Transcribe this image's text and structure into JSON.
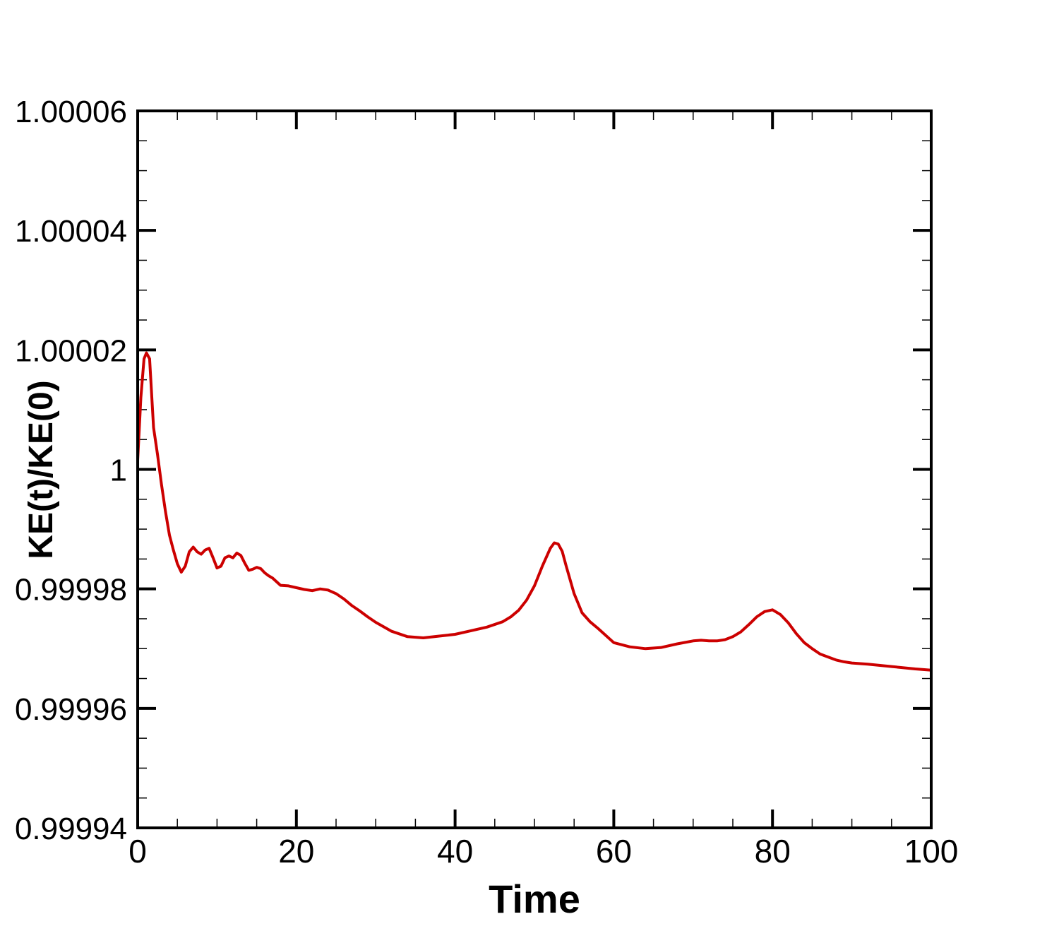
{
  "chart_data": {
    "type": "line",
    "title": "",
    "xlabel": "Time",
    "ylabel": "KE(t)/KE(0)",
    "xlim": [
      0,
      100
    ],
    "ylim": [
      0.99994,
      1.00006
    ],
    "x_ticks": [
      0,
      20,
      40,
      60,
      80,
      100
    ],
    "x_tick_labels": [
      "0",
      "20",
      "40",
      "60",
      "80",
      "100"
    ],
    "y_ticks": [
      0.99994,
      0.99996,
      0.99998,
      1.0,
      1.00002,
      1.00004,
      1.00006
    ],
    "y_tick_labels": [
      "0.99994",
      "0.99996",
      "0.99998",
      "1",
      "1.00002",
      "1.00004",
      "1.00006"
    ],
    "x_minor_step": 5,
    "y_minor_step": 5e-06,
    "grid": false,
    "legend": "none",
    "series": [
      {
        "color": "#cc0000",
        "x": [
          0,
          0.4,
          0.8,
          1.1,
          1.5,
          2.0,
          2.5,
          3.0,
          3.5,
          4.0,
          4.5,
          5.0,
          5.5,
          6.0,
          6.5,
          7.0,
          7.5,
          8.0,
          8.5,
          9.0,
          9.5,
          10.0,
          10.5,
          11.0,
          11.5,
          12.0,
          12.5,
          13.0,
          13.5,
          14.0,
          14.5,
          15.0,
          15.5,
          16.0,
          16.5,
          17.0,
          17.5,
          18.0,
          19.0,
          20.0,
          21.0,
          22.0,
          23.0,
          24.0,
          25.0,
          26.0,
          27.0,
          28.0,
          29.0,
          30.0,
          32.0,
          34.0,
          36.0,
          38.0,
          40.0,
          42.0,
          44.0,
          46.0,
          47.0,
          48.0,
          49.0,
          50.0,
          51.0,
          52.0,
          52.5,
          53.0,
          53.5,
          54.0,
          55.0,
          56.0,
          57.0,
          58.0,
          60.0,
          62.0,
          64.0,
          66.0,
          68.0,
          70.0,
          71.0,
          72.0,
          73.0,
          74.0,
          75.0,
          76.0,
          77.0,
          78.0,
          79.0,
          80.0,
          81.0,
          82.0,
          83.0,
          84.0,
          85.0,
          86.0,
          87.0,
          88.0,
          89.0,
          90.0,
          92.0,
          95.0,
          98.0,
          100.0
        ],
        "y": [
          1.0000015,
          1.000012,
          1.0000185,
          1.0000195,
          1.0000185,
          1.000007,
          1.0000025,
          0.9999975,
          0.999993,
          0.999989,
          0.9999865,
          0.9999842,
          0.9999828,
          0.9999838,
          0.9999862,
          0.999987,
          0.9999862,
          0.9999858,
          0.9999865,
          0.9999868,
          0.9999852,
          0.9999835,
          0.9999838,
          0.9999852,
          0.9999855,
          0.9999852,
          0.999986,
          0.9999856,
          0.9999843,
          0.9999831,
          0.9999833,
          0.9999836,
          0.9999834,
          0.9999827,
          0.9999822,
          0.9999818,
          0.9999812,
          0.9999806,
          0.9999805,
          0.9999802,
          0.9999799,
          0.9999797,
          0.99998,
          0.9999798,
          0.9999792,
          0.9999783,
          0.9999772,
          0.9999763,
          0.9999753,
          0.9999744,
          0.9999729,
          0.999972,
          0.9999718,
          0.9999721,
          0.9999724,
          0.999973,
          0.9999736,
          0.9999745,
          0.9999753,
          0.9999764,
          0.9999781,
          0.9999805,
          0.9999838,
          0.9999868,
          0.9999877,
          0.9999875,
          0.9999863,
          0.9999838,
          0.9999792,
          0.999976,
          0.9999745,
          0.9999734,
          0.999971,
          0.9999703,
          0.99997,
          0.9999702,
          0.9999708,
          0.9999713,
          0.9999714,
          0.9999713,
          0.9999713,
          0.9999715,
          0.999972,
          0.9999728,
          0.999974,
          0.9999753,
          0.9999762,
          0.9999765,
          0.9999757,
          0.9999743,
          0.9999725,
          0.999971,
          0.99997,
          0.9999691,
          0.9999686,
          0.9999681,
          0.9999678,
          0.9999676,
          0.9999674,
          0.999967,
          0.9999666,
          0.9999664
        ]
      }
    ]
  }
}
